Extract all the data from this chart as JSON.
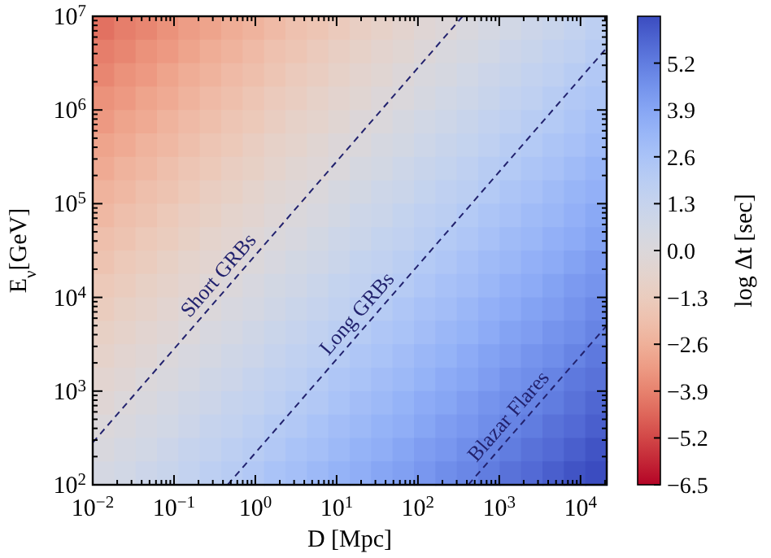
{
  "chart_data": {
    "type": "heatmap",
    "xlabel": "D [Mpc]",
    "ylabel": "E$_{ν}$[GeV]",
    "clabel": "log Δt [sec]",
    "log": "xy",
    "xlim": [
      0.01,
      21000
    ],
    "ylim": [
      100,
      10000000
    ],
    "xticks": [
      {
        "value": 0.01,
        "label": "10$^{−2}$"
      },
      {
        "value": 0.1,
        "label": "10$^{−1}$"
      },
      {
        "value": 1,
        "label": "10$^{0}$"
      },
      {
        "value": 10,
        "label": "10$^{1}$"
      },
      {
        "value": 100,
        "label": "10$^{2}$"
      },
      {
        "value": 1000,
        "label": "10$^{3}$"
      },
      {
        "value": 10000,
        "label": "10$^{4}$"
      }
    ],
    "yticks": [
      {
        "value": 100,
        "label": "10$^{2}$"
      },
      {
        "value": 1000,
        "label": "10$^{3}$"
      },
      {
        "value": 10000,
        "label": "10$^{4}$"
      },
      {
        "value": 100000,
        "label": "10$^{5}$"
      },
      {
        "value": 1000000,
        "label": "10$^{6}$"
      },
      {
        "value": 10000000,
        "label": "10$^{7}$"
      }
    ],
    "clim": [
      -6.5,
      6.5
    ],
    "cticks": [
      -6.5,
      -5.2,
      -3.9,
      -2.6,
      -1.3,
      {
        "value": 0,
        "label": "0.0"
      },
      1.3,
      2.6,
      3.9,
      5.2
    ],
    "cells": [
      [
        -4.3,
        -4.0,
        -3.8,
        -3.5,
        -3.2,
        -3.0,
        -2.7,
        -2.5,
        -2.2,
        -1.9,
        -1.7,
        -1.4,
        -1.1,
        -0.9,
        -0.6,
        -0.3,
        -0.1,
        0.2,
        0.5,
        0.7,
        1.0,
        1.2,
        1.5,
        1.8
      ],
      [
        -4.0,
        -3.8,
        -3.5,
        -3.3,
        -3.0,
        -2.7,
        -2.5,
        -2.2,
        -1.9,
        -1.7,
        -1.4,
        -1.1,
        -0.9,
        -0.6,
        -0.4,
        -0.1,
        0.2,
        0.4,
        0.7,
        1.0,
        1.2,
        1.5,
        1.7,
        2.0
      ],
      [
        -3.8,
        -3.5,
        -3.3,
        -3.0,
        -2.7,
        -2.5,
        -2.2,
        -2.0,
        -1.7,
        -1.4,
        -1.2,
        -0.9,
        -0.6,
        -0.4,
        -0.1,
        0.2,
        0.4,
        0.7,
        1.0,
        1.2,
        1.5,
        1.7,
        2.0,
        2.3
      ],
      [
        -3.5,
        -3.3,
        -3.0,
        -2.8,
        -2.5,
        -2.2,
        -2.0,
        -1.7,
        -1.4,
        -1.2,
        -0.9,
        -0.6,
        -0.4,
        -0.1,
        0.1,
        0.4,
        0.7,
        0.9,
        1.2,
        1.5,
        1.7,
        2.0,
        2.3,
        2.5
      ],
      [
        -3.3,
        -3.0,
        -2.8,
        -2.5,
        -2.2,
        -2.0,
        -1.7,
        -1.5,
        -1.2,
        -0.9,
        -0.7,
        -0.4,
        -0.1,
        0.1,
        0.4,
        0.7,
        0.9,
        1.2,
        1.5,
        1.7,
        2.0,
        2.2,
        2.5,
        2.8
      ],
      [
        -3.0,
        -2.8,
        -2.5,
        -2.3,
        -2.0,
        -1.7,
        -1.5,
        -1.2,
        -0.9,
        -0.7,
        -0.4,
        -0.1,
        0.1,
        0.4,
        0.6,
        0.9,
        1.2,
        1.4,
        1.7,
        2.0,
        2.2,
        2.5,
        2.7,
        3.0
      ],
      [
        -2.8,
        -2.5,
        -2.3,
        -2.0,
        -1.7,
        -1.5,
        -1.2,
        -1.0,
        -0.7,
        -0.4,
        -0.2,
        0.1,
        0.4,
        0.6,
        0.9,
        1.2,
        1.4,
        1.7,
        2.0,
        2.2,
        2.5,
        2.7,
        3.0,
        3.3
      ],
      [
        -2.5,
        -2.3,
        -2.0,
        -1.8,
        -1.5,
        -1.2,
        -1.0,
        -0.7,
        -0.4,
        -0.2,
        0.1,
        0.4,
        0.6,
        0.9,
        1.1,
        1.4,
        1.7,
        1.9,
        2.2,
        2.5,
        2.7,
        3.0,
        3.3,
        3.5
      ],
      [
        -2.3,
        -2.0,
        -1.8,
        -1.5,
        -1.2,
        -1.0,
        -0.7,
        -0.5,
        -0.2,
        0.1,
        0.3,
        0.6,
        0.9,
        1.1,
        1.4,
        1.7,
        1.9,
        2.2,
        2.5,
        2.7,
        3.0,
        3.2,
        3.5,
        3.8
      ],
      [
        -2.0,
        -1.8,
        -1.5,
        -1.3,
        -1.0,
        -0.7,
        -0.5,
        -0.2,
        0.1,
        0.3,
        0.6,
        0.9,
        1.1,
        1.4,
        1.6,
        1.9,
        2.2,
        2.4,
        2.7,
        3.0,
        3.2,
        3.5,
        3.7,
        4.0
      ],
      [
        -1.8,
        -1.5,
        -1.3,
        -1.0,
        -0.7,
        -0.5,
        -0.2,
        0.0,
        0.3,
        0.6,
        0.8,
        1.1,
        1.4,
        1.6,
        1.9,
        2.2,
        2.4,
        2.7,
        3.0,
        3.2,
        3.5,
        3.7,
        4.0,
        4.3
      ],
      [
        -1.5,
        -1.3,
        -1.0,
        -0.8,
        -0.5,
        -0.2,
        0.0,
        0.3,
        0.6,
        0.8,
        1.1,
        1.4,
        1.6,
        1.9,
        2.1,
        2.4,
        2.7,
        2.9,
        3.2,
        3.5,
        3.7,
        4.0,
        4.3,
        4.5
      ],
      [
        -1.3,
        -1.0,
        -0.8,
        -0.5,
        -0.2,
        0.0,
        0.3,
        0.5,
        0.8,
        1.1,
        1.3,
        1.6,
        1.9,
        2.1,
        2.4,
        2.7,
        2.9,
        3.2,
        3.5,
        3.7,
        4.0,
        4.2,
        4.5,
        4.8
      ],
      [
        -1.0,
        -0.8,
        -0.5,
        -0.3,
        0.0,
        0.3,
        0.5,
        0.8,
        1.1,
        1.3,
        1.6,
        1.9,
        2.1,
        2.4,
        2.6,
        2.9,
        3.2,
        3.4,
        3.7,
        4.0,
        4.2,
        4.5,
        4.7,
        5.0
      ],
      [
        -0.8,
        -0.5,
        -0.3,
        0.0,
        0.3,
        0.5,
        0.8,
        1.0,
        1.3,
        1.6,
        1.8,
        2.1,
        2.4,
        2.6,
        2.9,
        3.2,
        3.4,
        3.7,
        4.0,
        4.2,
        4.5,
        4.7,
        5.0,
        5.3
      ],
      [
        -0.5,
        -0.3,
        0.0,
        0.2,
        0.5,
        0.8,
        1.0,
        1.3,
        1.6,
        1.8,
        2.1,
        2.4,
        2.6,
        2.9,
        3.1,
        3.4,
        3.7,
        3.9,
        4.2,
        4.5,
        4.7,
        5.0,
        5.3,
        5.5
      ],
      [
        -0.3,
        0.0,
        0.2,
        0.5,
        0.8,
        1.0,
        1.3,
        1.5,
        1.8,
        2.1,
        2.3,
        2.6,
        2.9,
        3.1,
        3.4,
        3.7,
        3.9,
        4.2,
        4.5,
        4.7,
        5.0,
        5.2,
        5.5,
        5.8
      ],
      [
        0.0,
        0.2,
        0.5,
        0.7,
        1.0,
        1.3,
        1.5,
        1.8,
        2.1,
        2.3,
        2.6,
        2.9,
        3.1,
        3.4,
        3.6,
        3.9,
        4.2,
        4.4,
        4.7,
        5.0,
        5.2,
        5.5,
        5.7,
        6.0
      ],
      [
        0.2,
        0.5,
        0.7,
        1.0,
        1.3,
        1.5,
        1.8,
        2.0,
        2.3,
        2.6,
        2.8,
        3.1,
        3.4,
        3.6,
        3.9,
        4.2,
        4.4,
        4.7,
        5.0,
        5.2,
        5.5,
        5.7,
        6.0,
        6.3
      ],
      [
        0.5,
        0.7,
        1.0,
        1.2,
        1.5,
        1.8,
        2.0,
        2.3,
        2.6,
        2.8,
        3.1,
        3.4,
        3.6,
        3.9,
        4.1,
        4.4,
        4.7,
        4.9,
        5.2,
        5.5,
        5.7,
        6.0,
        6.3,
        6.5
      ]
    ],
    "line_style": "dashed",
    "series": [
      {
        "type": "line",
        "name": "Short GRBs",
        "color": "#22226e",
        "x": [
          0.01,
          355
        ],
        "values": [
          282,
          10000000
        ]
      },
      {
        "type": "line",
        "name": "Long GRBs",
        "color": "#22226e",
        "x": [
          0.457,
          21000
        ],
        "values": [
          100,
          4600000
        ]
      },
      {
        "type": "line",
        "name": "Blazar Flares",
        "color": "#22226e",
        "x": [
          417,
          21000
        ],
        "values": [
          100,
          5000
        ]
      }
    ]
  }
}
